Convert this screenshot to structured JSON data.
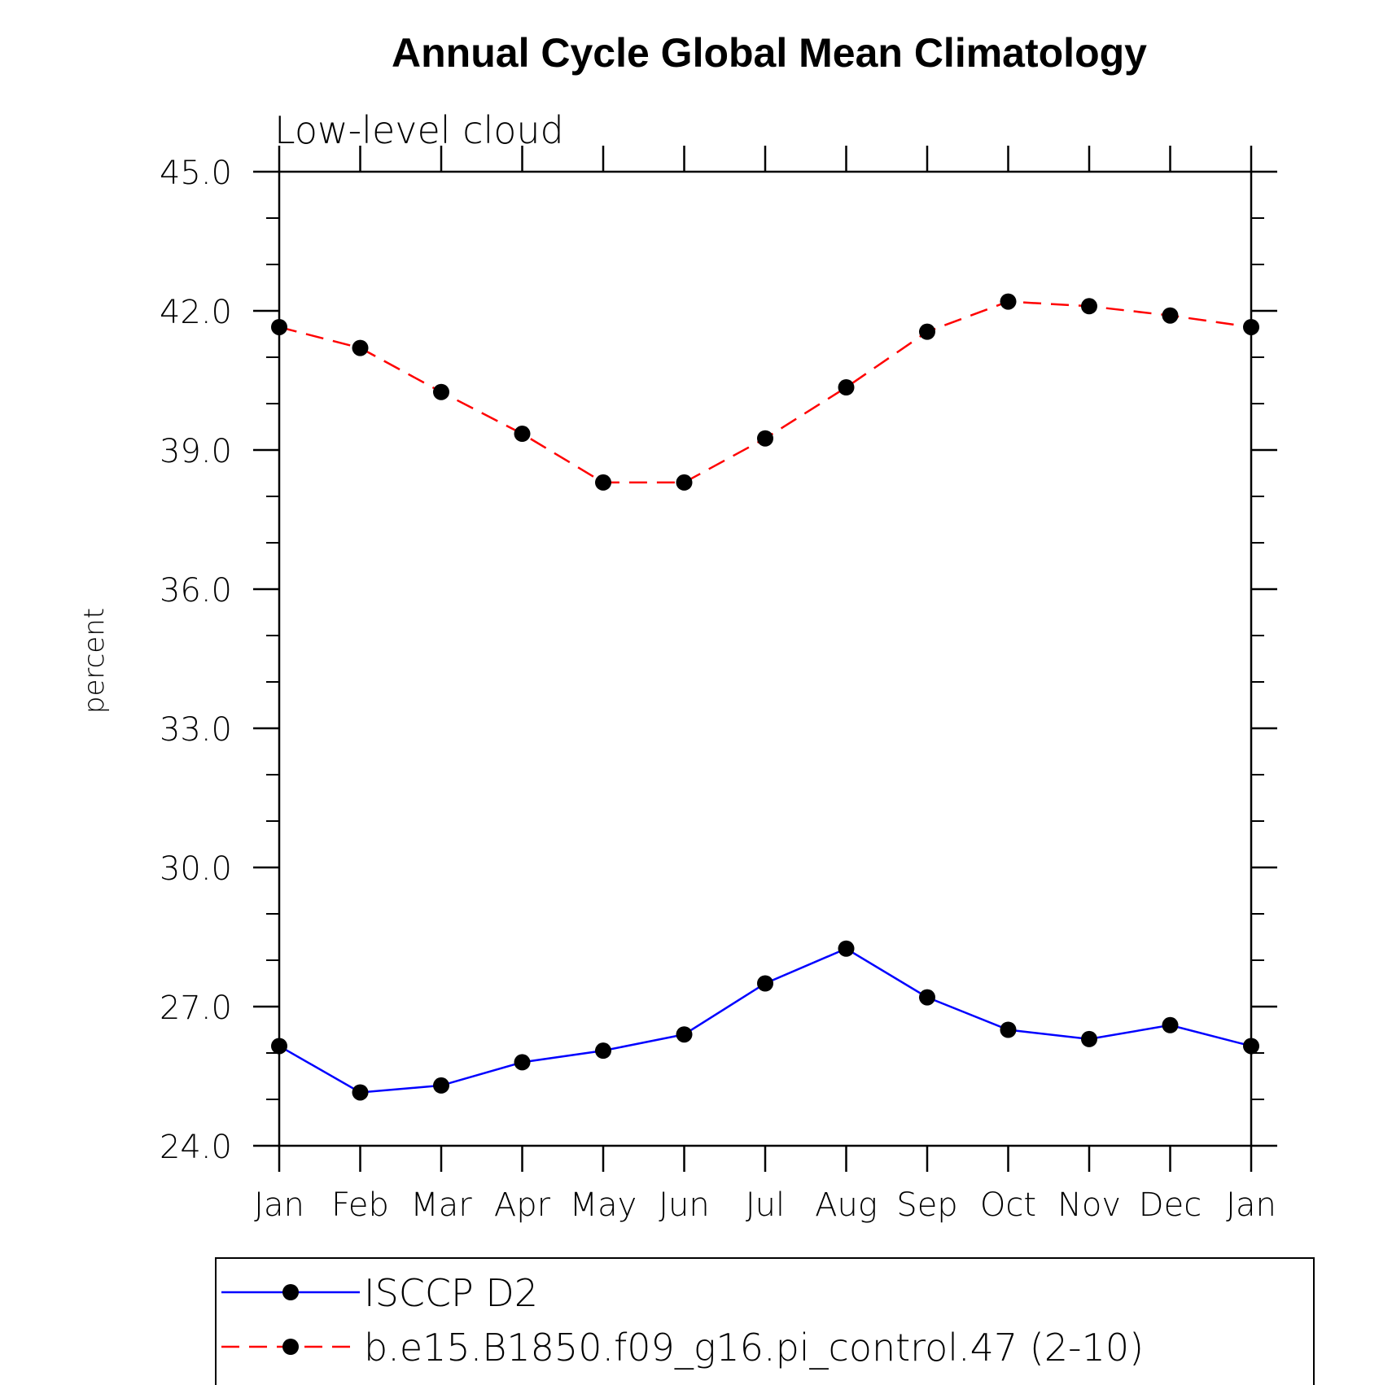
{
  "chart_data": {
    "type": "line",
    "title": "Annual Cycle Global Mean Climatology",
    "subtitle": "Low-level cloud",
    "xlabel": "",
    "ylabel": "percent",
    "categories": [
      "Jan",
      "Feb",
      "Mar",
      "Apr",
      "May",
      "Jun",
      "Jul",
      "Aug",
      "Sep",
      "Oct",
      "Nov",
      "Dec",
      "Jan"
    ],
    "ylim": [
      24.0,
      45.0
    ],
    "yticks": [
      "24.0",
      "27.0",
      "30.0",
      "33.0",
      "36.0",
      "39.0",
      "42.0",
      "45.0"
    ],
    "grid": false,
    "legend_position": "bottom",
    "series": [
      {
        "name": "ISCCP D2",
        "color": "#0000ff",
        "line_style": "solid",
        "marker": "filled-circle",
        "values": [
          26.15,
          25.15,
          25.3,
          25.8,
          26.05,
          26.4,
          27.5,
          28.25,
          27.2,
          26.5,
          26.3,
          26.6,
          26.15
        ]
      },
      {
        "name": "b.e15.B1850.f09_g16.pi_control.47 (2-10)",
        "color": "#ff0000",
        "line_style": "dashed",
        "marker": "filled-circle",
        "values": [
          41.65,
          41.2,
          40.25,
          39.35,
          38.3,
          38.3,
          39.25,
          40.35,
          41.55,
          42.2,
          42.1,
          41.9,
          41.65
        ]
      }
    ]
  }
}
